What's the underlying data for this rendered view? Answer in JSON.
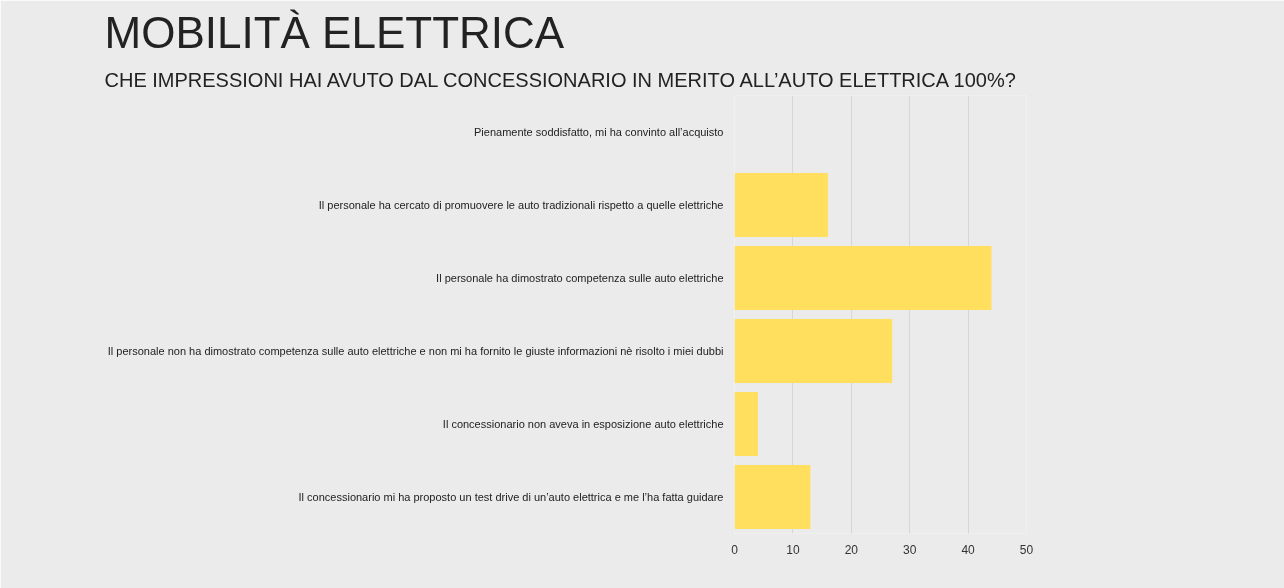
{
  "chart_data": {
    "type": "bar",
    "orientation": "horizontal",
    "title": "MOBILITÀ ELETTRICA",
    "subtitle": "CHE IMPRESSIONI HAI AVUTO DAL CONCESSIONARIO IN MERITO ALL’AUTO ELETTRICA 100%?",
    "categories": [
      "Pienamente soddisfatto, mi ha convinto all’acquisto",
      "Il personale ha cercato di promuovere le auto tradizionali rispetto a quelle elettriche",
      "Il personale ha dimostrato competenza sulle auto elettriche",
      "Il personale non ha dimostrato competenza sulle auto elettriche e non mi ha fornito le giuste informazioni nè risolto i miei dubbi",
      "Il concessionario non aveva in esposizione auto elettriche",
      "Il concessionario mi ha proposto un test drive di un’auto elettrica e me l’ha fatta guidare"
    ],
    "values": [
      0,
      16,
      44,
      27,
      4,
      13
    ],
    "color": "#ffdf5d",
    "xlim": [
      0,
      50
    ],
    "xticks": [
      0,
      10,
      20,
      30,
      40,
      50
    ],
    "grid": "x"
  }
}
